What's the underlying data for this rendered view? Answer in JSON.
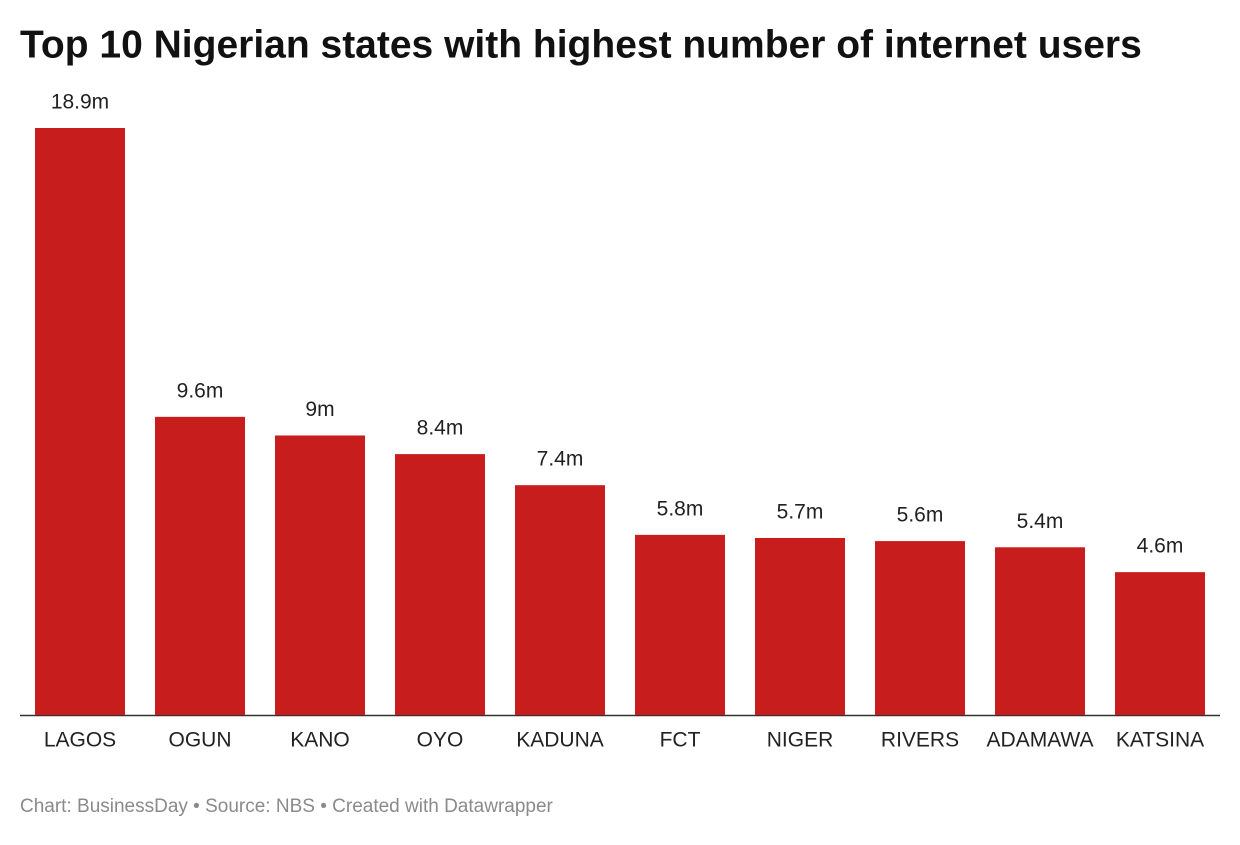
{
  "chart_data": {
    "type": "bar",
    "title": "Top 10 Nigerian states with highest number of internet users",
    "categories": [
      "LAGOS",
      "OGUN",
      "KANO",
      "OYO",
      "KADUNA",
      "FCT",
      "NIGER",
      "RIVERS",
      "ADAMAWA",
      "KATSINA"
    ],
    "values": [
      18.9,
      9.6,
      9,
      8.4,
      7.4,
      5.8,
      5.7,
      5.6,
      5.4,
      4.6
    ],
    "value_labels": [
      "18.9m",
      "9.6m",
      "9m",
      "8.4m",
      "7.4m",
      "5.8m",
      "5.7m",
      "5.6m",
      "5.4m",
      "4.6m"
    ],
    "color": "#c71e1d",
    "footer": "Chart: BusinessDay • Source: NBS • Created with Datawrapper"
  }
}
